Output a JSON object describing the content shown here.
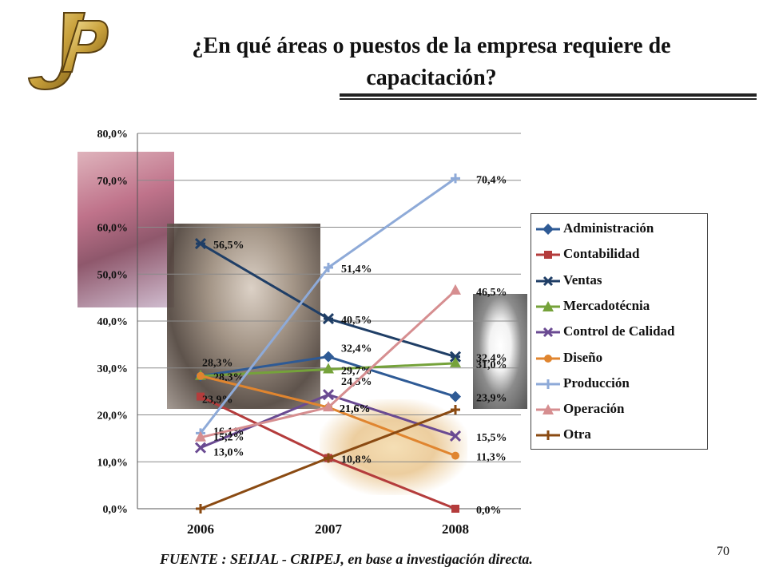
{
  "slide": {
    "title": "¿En qué áreas o puestos de la empresa requiere de capacitación?",
    "source": "FUENTE :  SEIJAL - CRIPEJ,  en base a investigación directa.",
    "page_number": "70",
    "logo_text": "JP"
  },
  "chart_data": {
    "type": "line",
    "categories": [
      "2006",
      "2007",
      "2008"
    ],
    "ylim": [
      0,
      80
    ],
    "yticks": [
      "0,0%",
      "10,0%",
      "20,0%",
      "30,0%",
      "40,0%",
      "50,0%",
      "60,0%",
      "70,0%",
      "80,0%"
    ],
    "grid": true,
    "legend_position": "right",
    "series": [
      {
        "name": "Administración",
        "color": "#2e5a95",
        "marker": "diamond",
        "values": [
          28.3,
          32.4,
          23.9
        ],
        "labels": [
          "28,3%",
          "32,4%",
          "23,9%"
        ]
      },
      {
        "name": "Contabilidad",
        "color": "#b43c3c",
        "marker": "square",
        "values": [
          23.9,
          10.8,
          0.0
        ],
        "labels": [
          "23,9%",
          "10,8%",
          "0,0%"
        ]
      },
      {
        "name": "Ventas",
        "color": "#1f3e66",
        "marker": "star",
        "values": [
          56.5,
          40.5,
          32.4
        ],
        "labels": [
          "56,5%",
          "40,5%",
          "32,4%"
        ]
      },
      {
        "name": "Mercadotécnia",
        "color": "#75a23a",
        "marker": "triangle",
        "values": [
          28.3,
          29.7,
          31.0
        ],
        "labels": [
          "28,3%",
          "29,7%",
          "31,0%"
        ]
      },
      {
        "name": "Control de Calidad",
        "color": "#6a4a92",
        "marker": "x",
        "values": [
          13.0,
          24.3,
          15.5
        ],
        "labels": [
          "13,0%",
          "24,3%",
          "15,5%"
        ]
      },
      {
        "name": "Diseño",
        "color": "#e0852f",
        "marker": "circle",
        "values": [
          28.3,
          21.6,
          11.3
        ],
        "labels": [
          "",
          "21,6%",
          "11,3%"
        ]
      },
      {
        "name": "Producción",
        "color": "#8eaad8",
        "marker": "plus",
        "values": [
          16.1,
          51.4,
          70.4
        ],
        "labels": [
          "16,1%",
          "51,4%",
          "70,4%"
        ]
      },
      {
        "name": "Operación",
        "color": "#d68e90",
        "marker": "triangle",
        "values": [
          15.2,
          21.6,
          46.5
        ],
        "labels": [
          "15,2%",
          "21,6%",
          "46,5%"
        ]
      },
      {
        "name": "Otra",
        "color": "#8a4a12",
        "marker": "plus",
        "values": [
          0.0,
          10.8,
          21.1
        ],
        "labels": [
          "",
          "",
          ""
        ]
      }
    ]
  }
}
